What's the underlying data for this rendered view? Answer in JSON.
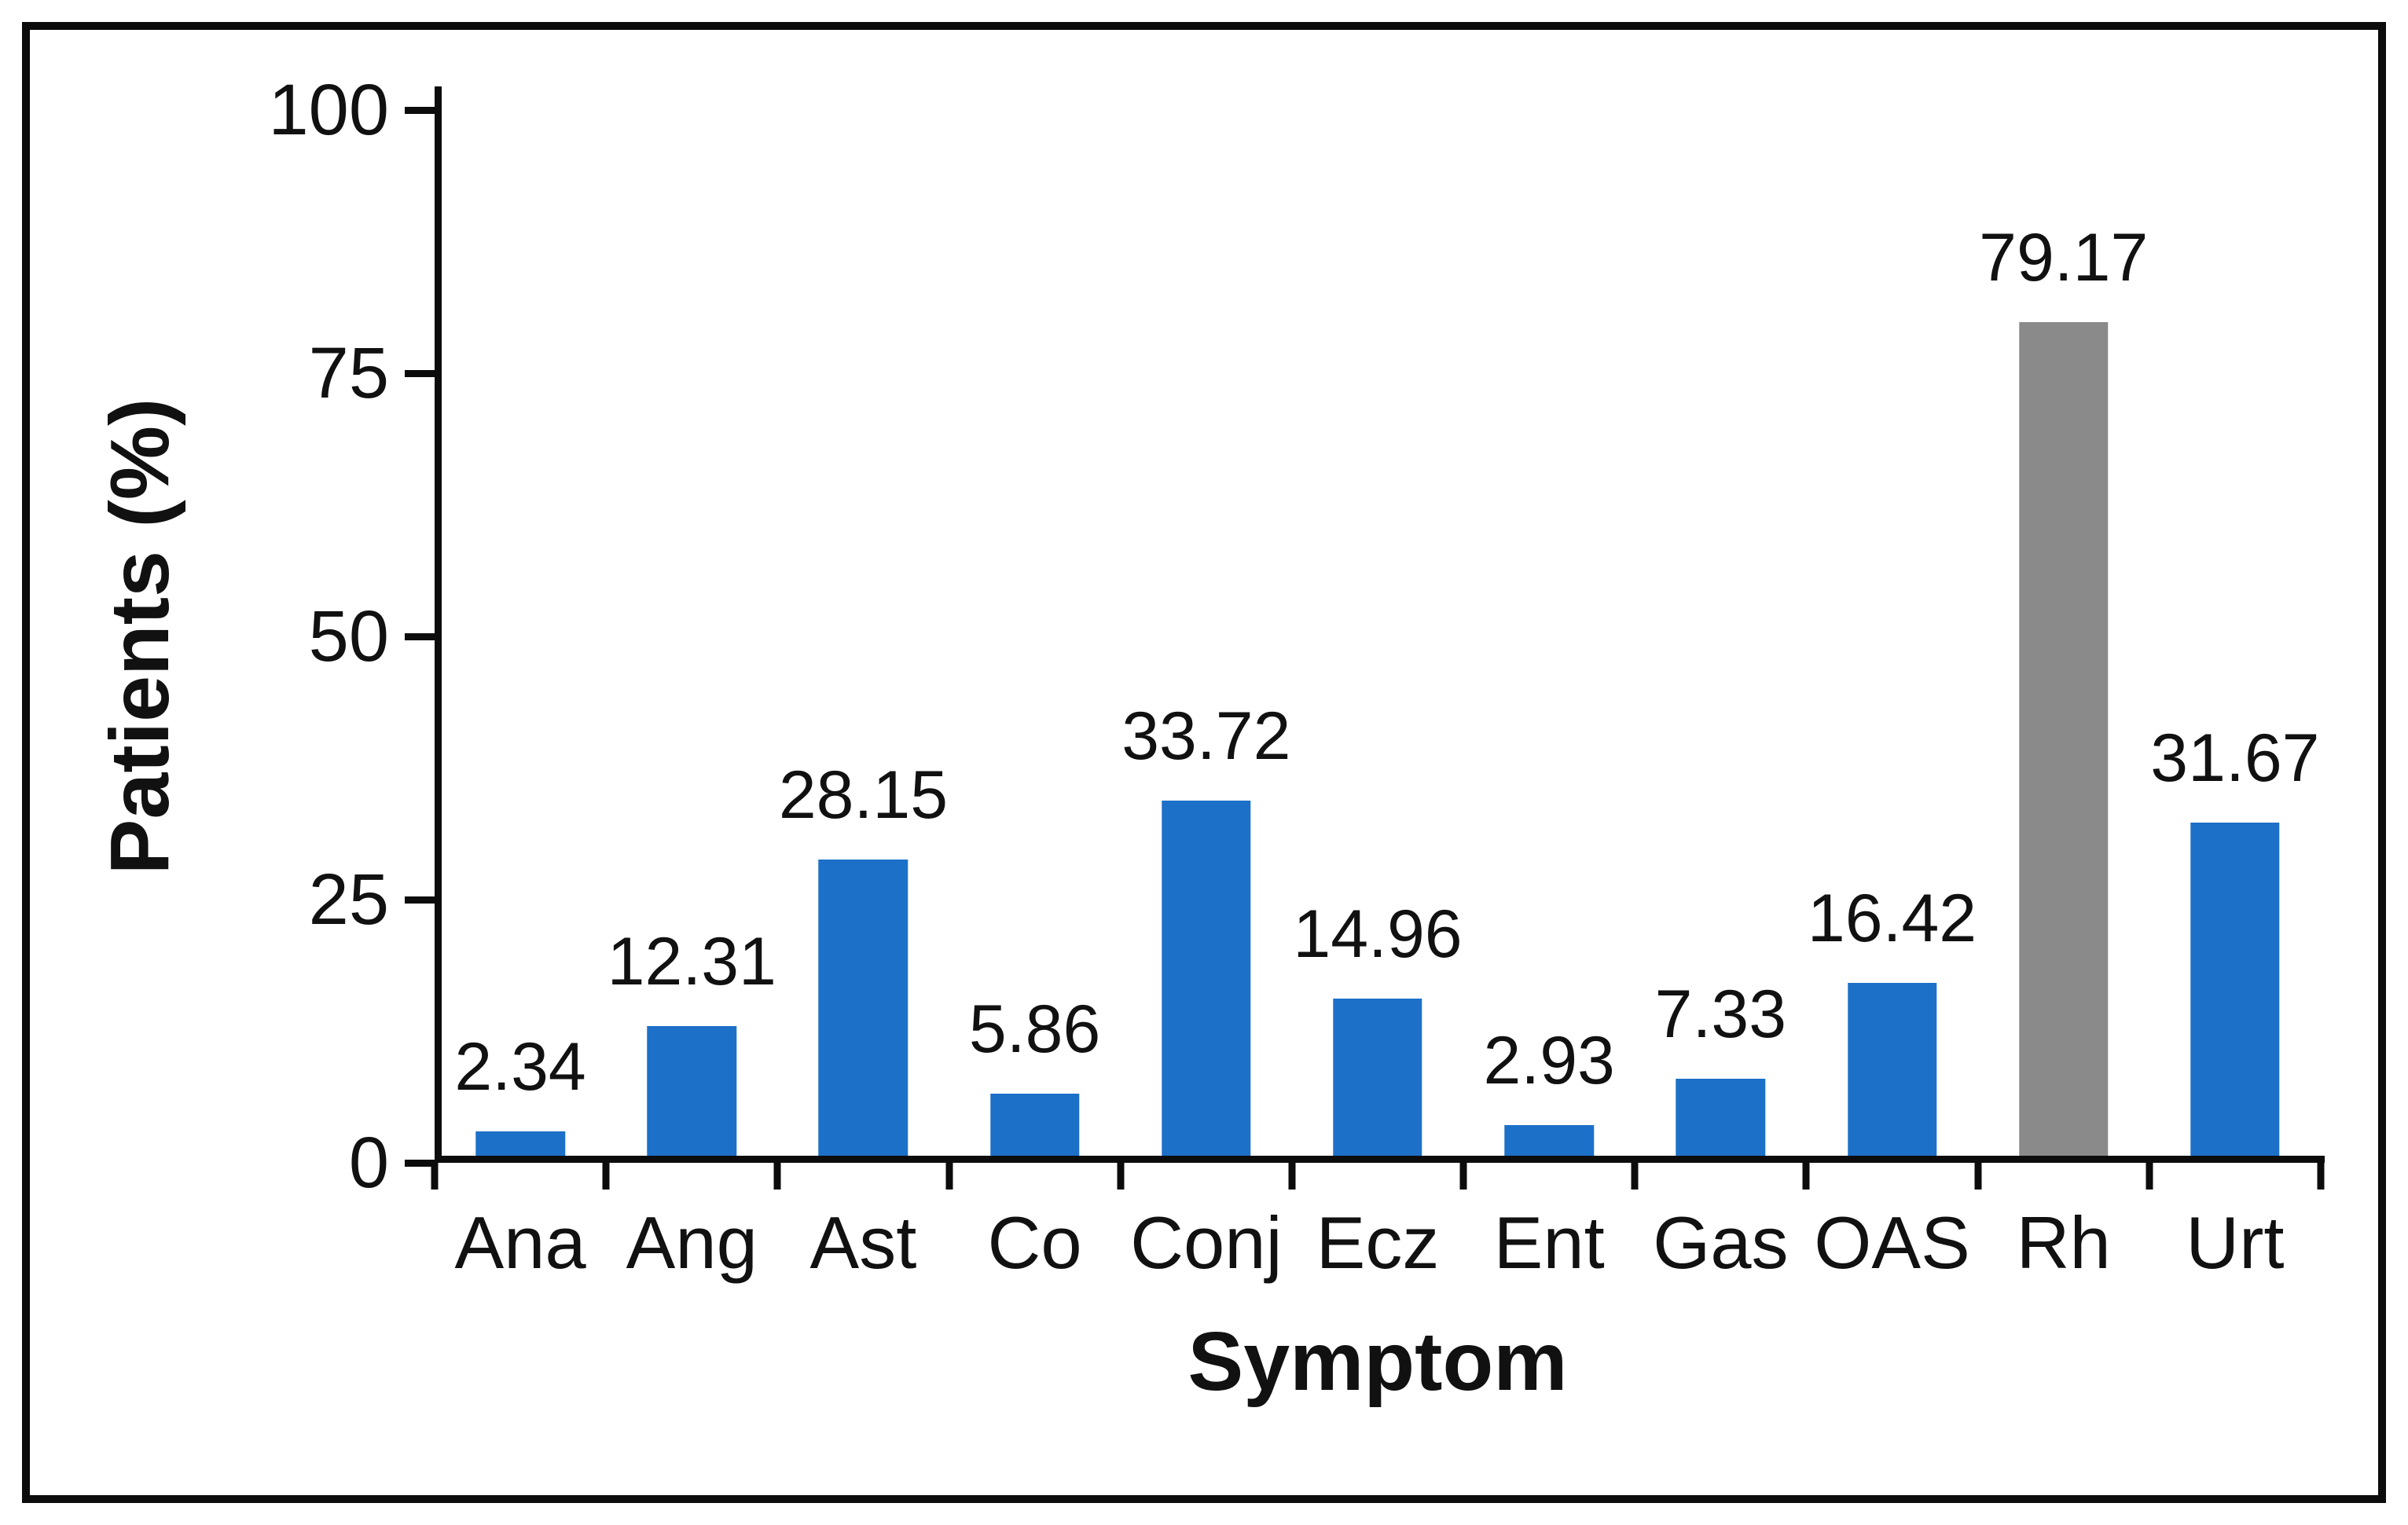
{
  "figure": {
    "background_color": "#ffffff",
    "frame_color": "#0c0c0c",
    "axis_color": "#0c0c0c",
    "text_color": "#111111",
    "bar_blue": "#1d70c8",
    "bar_gray": "#8a8a8a"
  },
  "chart_data": {
    "type": "bar",
    "title": "",
    "xlabel": "Symptom",
    "ylabel": "Patients (%)",
    "categories": [
      "Ana",
      "Ang",
      "Ast",
      "Co",
      "Conj",
      "Ecz",
      "Ent",
      "Gas",
      "OAS",
      "Rh",
      "Urt"
    ],
    "values": [
      2.34,
      12.31,
      28.15,
      5.86,
      33.72,
      14.96,
      2.93,
      7.33,
      16.42,
      79.17,
      31.67
    ],
    "data_labels": [
      "2.34",
      "12.31",
      "28.15",
      "5.86",
      "33.72",
      "14.96",
      "2.93",
      "7.33",
      "16.42",
      "79.17",
      "31.67"
    ],
    "bar_colors": [
      "#1d70c8",
      "#1d70c8",
      "#1d70c8",
      "#1d70c8",
      "#1d70c8",
      "#1d70c8",
      "#1d70c8",
      "#1d70c8",
      "#1d70c8",
      "#8a8a8a",
      "#1d70c8"
    ],
    "ylim": [
      0,
      100
    ],
    "yticks": [
      0,
      25,
      50,
      75,
      100
    ],
    "ytick_labels": [
      "0",
      "25",
      "50",
      "75",
      "100"
    ],
    "grid": false,
    "legend": "none",
    "bar_width_fraction": 0.52
  }
}
